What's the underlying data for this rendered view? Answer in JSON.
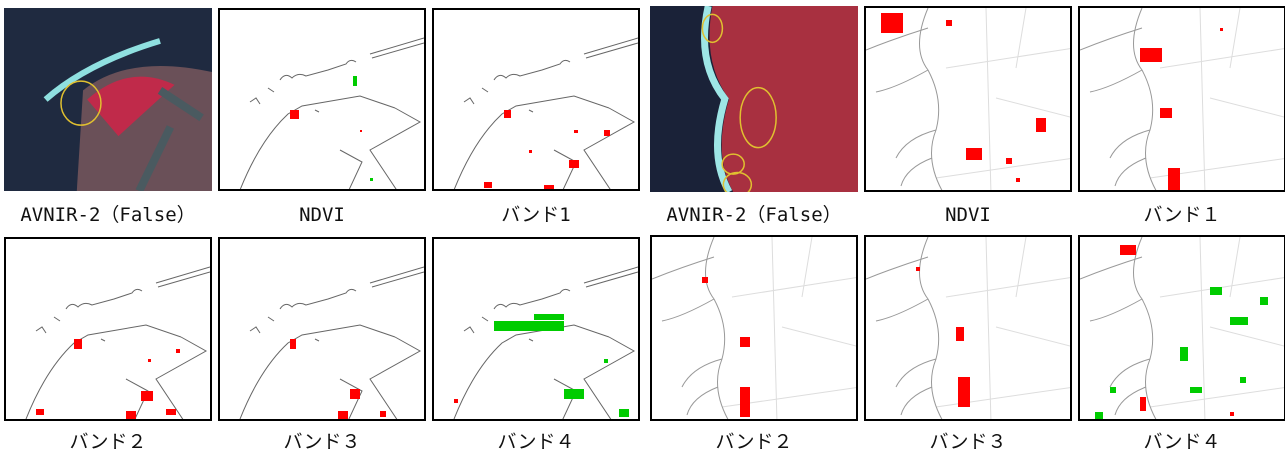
{
  "figures": [
    {
      "panels": [
        {
          "caption": "AVNIR-2（False）"
        },
        {
          "caption": "NDVI"
        },
        {
          "caption": "バンド1"
        },
        {
          "caption": "バンド２"
        },
        {
          "caption": "バンド３"
        },
        {
          "caption": "バンド４"
        }
      ]
    },
    {
      "panels": [
        {
          "caption": "AVNIR-2（False）"
        },
        {
          "caption": "NDVI"
        },
        {
          "caption": "バンド１"
        },
        {
          "caption": "バンド２"
        },
        {
          "caption": "バンド３"
        },
        {
          "caption": "バンド４"
        }
      ]
    }
  ]
}
